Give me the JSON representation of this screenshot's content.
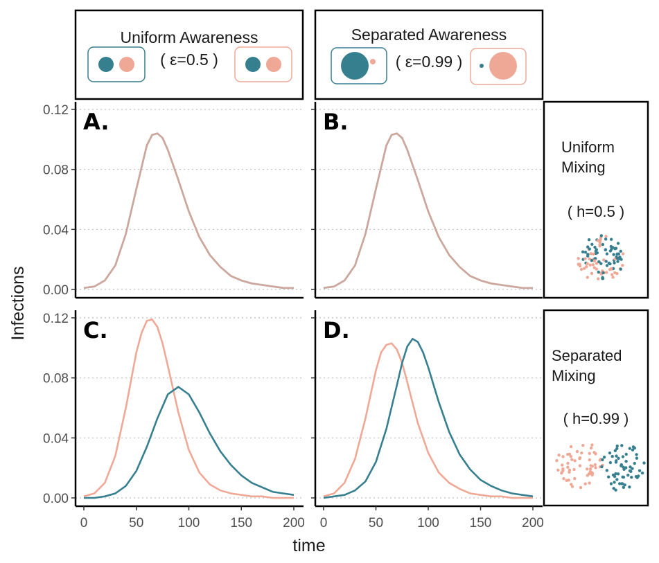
{
  "colors": {
    "teal": "#367f8f",
    "salmon": "#f0a896",
    "overlap": "#b58f85"
  },
  "header": {
    "uniform": {
      "title": "Uniform Awareness",
      "epsilon": "( ε=0.5 )"
    },
    "separated": {
      "title": "Separated Awareness",
      "epsilon": "( ε=0.99 )"
    }
  },
  "side": {
    "uniform": {
      "line1": "Uniform",
      "line2": "Mixing",
      "h": "( h=0.5 )"
    },
    "separated": {
      "line1": "Separated",
      "line2": "Mixing",
      "h": "( h=0.99 )"
    }
  },
  "chart_data": [
    {
      "panel": "A.",
      "type": "line",
      "xlim": [
        0,
        200
      ],
      "ylim": [
        0,
        0.12
      ],
      "series": [
        {
          "color": "#367f8f",
          "x": [
            0,
            10,
            20,
            30,
            40,
            50,
            60,
            65,
            70,
            75,
            80,
            90,
            100,
            110,
            120,
            130,
            140,
            150,
            160,
            170,
            180,
            190,
            200
          ],
          "y": [
            0.001,
            0.002,
            0.006,
            0.016,
            0.037,
            0.067,
            0.096,
            0.103,
            0.104,
            0.101,
            0.093,
            0.073,
            0.052,
            0.035,
            0.023,
            0.015,
            0.009,
            0.006,
            0.004,
            0.003,
            0.002,
            0.001,
            0.001
          ]
        },
        {
          "color": "#f0a896",
          "x": [
            0,
            10,
            20,
            30,
            40,
            50,
            60,
            65,
            70,
            75,
            80,
            90,
            100,
            110,
            120,
            130,
            140,
            150,
            160,
            170,
            180,
            190,
            200
          ],
          "y": [
            0.001,
            0.002,
            0.006,
            0.016,
            0.037,
            0.067,
            0.096,
            0.103,
            0.104,
            0.101,
            0.093,
            0.073,
            0.052,
            0.035,
            0.023,
            0.015,
            0.009,
            0.006,
            0.004,
            0.003,
            0.002,
            0.001,
            0.001
          ]
        }
      ]
    },
    {
      "panel": "B.",
      "type": "line",
      "xlim": [
        0,
        200
      ],
      "ylim": [
        0,
        0.12
      ],
      "series": [
        {
          "color": "#367f8f",
          "x": [
            0,
            10,
            20,
            30,
            40,
            50,
            60,
            65,
            70,
            75,
            80,
            90,
            100,
            110,
            120,
            130,
            140,
            150,
            160,
            170,
            180,
            190,
            200
          ],
          "y": [
            0.001,
            0.002,
            0.006,
            0.016,
            0.037,
            0.067,
            0.096,
            0.103,
            0.104,
            0.101,
            0.093,
            0.073,
            0.052,
            0.035,
            0.023,
            0.015,
            0.009,
            0.006,
            0.004,
            0.003,
            0.002,
            0.001,
            0.001
          ]
        },
        {
          "color": "#f0a896",
          "x": [
            0,
            10,
            20,
            30,
            40,
            50,
            60,
            65,
            70,
            75,
            80,
            90,
            100,
            110,
            120,
            130,
            140,
            150,
            160,
            170,
            180,
            190,
            200
          ],
          "y": [
            0.001,
            0.002,
            0.006,
            0.016,
            0.037,
            0.067,
            0.096,
            0.103,
            0.104,
            0.101,
            0.093,
            0.073,
            0.052,
            0.035,
            0.023,
            0.015,
            0.009,
            0.006,
            0.004,
            0.003,
            0.002,
            0.001,
            0.001
          ]
        }
      ]
    },
    {
      "panel": "C.",
      "type": "line",
      "xlim": [
        0,
        200
      ],
      "ylim": [
        0,
        0.12
      ],
      "series": [
        {
          "color": "#f0a896",
          "x": [
            0,
            10,
            20,
            30,
            40,
            50,
            55,
            60,
            65,
            70,
            75,
            80,
            90,
            100,
            110,
            120,
            130,
            140,
            150,
            160,
            170,
            180,
            190,
            200
          ],
          "y": [
            0.001,
            0.003,
            0.01,
            0.028,
            0.06,
            0.097,
            0.11,
            0.118,
            0.119,
            0.114,
            0.103,
            0.088,
            0.057,
            0.032,
            0.017,
            0.009,
            0.005,
            0.003,
            0.002,
            0.001,
            0.001,
            0.0,
            0.0,
            0.0
          ]
        },
        {
          "color": "#367f8f",
          "x": [
            0,
            10,
            20,
            30,
            40,
            50,
            60,
            70,
            80,
            90,
            100,
            110,
            120,
            130,
            140,
            150,
            160,
            170,
            180,
            190,
            200
          ],
          "y": [
            0.0,
            0.0,
            0.001,
            0.003,
            0.008,
            0.018,
            0.034,
            0.053,
            0.069,
            0.074,
            0.069,
            0.057,
            0.043,
            0.031,
            0.022,
            0.015,
            0.01,
            0.007,
            0.004,
            0.003,
            0.002
          ]
        }
      ]
    },
    {
      "panel": "D.",
      "type": "line",
      "xlim": [
        0,
        200
      ],
      "ylim": [
        0,
        0.12
      ],
      "series": [
        {
          "color": "#f0a896",
          "x": [
            0,
            10,
            20,
            30,
            40,
            50,
            55,
            60,
            65,
            70,
            75,
            80,
            90,
            100,
            110,
            120,
            130,
            140,
            150,
            160,
            170,
            180,
            190,
            200
          ],
          "y": [
            0.001,
            0.003,
            0.01,
            0.026,
            0.053,
            0.085,
            0.097,
            0.102,
            0.103,
            0.099,
            0.09,
            0.077,
            0.05,
            0.03,
            0.017,
            0.01,
            0.006,
            0.003,
            0.002,
            0.001,
            0.001,
            0.0,
            0.0,
            0.0
          ]
        },
        {
          "color": "#367f8f",
          "x": [
            0,
            10,
            20,
            30,
            40,
            50,
            60,
            70,
            75,
            80,
            85,
            90,
            95,
            100,
            110,
            120,
            130,
            140,
            150,
            160,
            170,
            180,
            190,
            200
          ],
          "y": [
            0.0,
            0.001,
            0.002,
            0.005,
            0.011,
            0.024,
            0.046,
            0.075,
            0.09,
            0.101,
            0.106,
            0.104,
            0.097,
            0.087,
            0.064,
            0.044,
            0.029,
            0.019,
            0.012,
            0.008,
            0.005,
            0.003,
            0.002,
            0.001
          ]
        }
      ]
    }
  ],
  "axes": {
    "ylabel": "Infections",
    "xlabel": "time",
    "yticks": [
      "0.00",
      "0.04",
      "0.08",
      "0.12"
    ],
    "ytick_values": [
      0,
      0.04,
      0.08,
      0.12
    ],
    "xticks": [
      "0",
      "50",
      "100",
      "150",
      "200"
    ],
    "xtick_values": [
      0,
      50,
      100,
      150,
      200
    ]
  }
}
